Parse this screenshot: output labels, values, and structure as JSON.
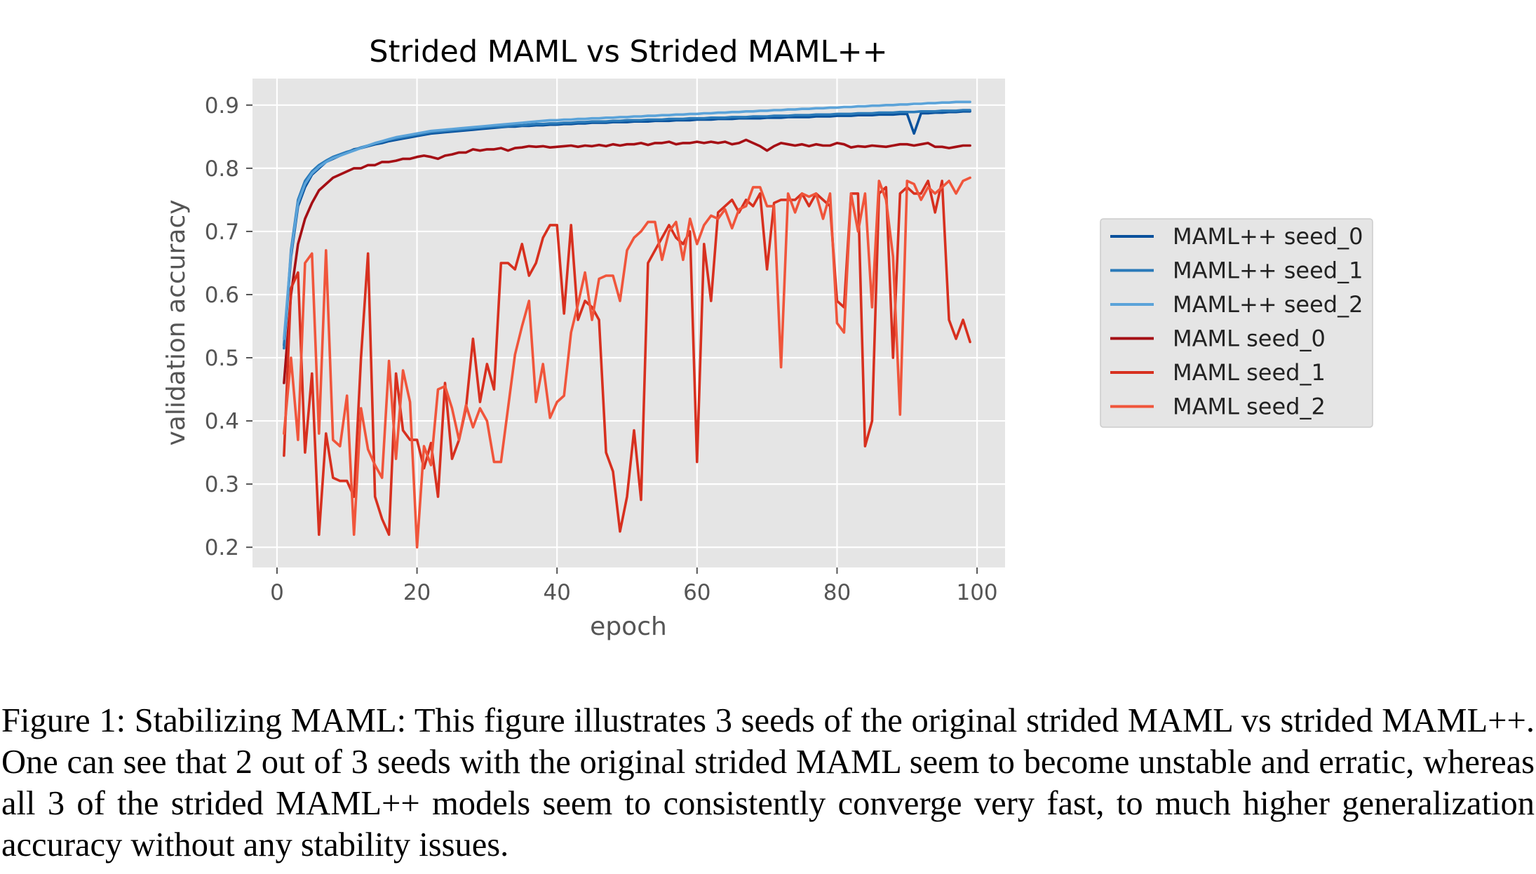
{
  "chart_data": {
    "type": "line",
    "title": "Strided MAML vs Strided MAML++",
    "xlabel": "epoch",
    "ylabel": "validation accuracy",
    "xlim": [
      -3.5,
      104
    ],
    "ylim": [
      0.168,
      0.942
    ],
    "xticks": [
      0,
      20,
      40,
      60,
      80,
      100
    ],
    "yticks": [
      0.2,
      0.3,
      0.4,
      0.5,
      0.6,
      0.7,
      0.8,
      0.9
    ],
    "xtick_labels": [
      "0",
      "20",
      "40",
      "60",
      "80",
      "100"
    ],
    "ytick_labels": [
      "0.2",
      "0.3",
      "0.4",
      "0.5",
      "0.6",
      "0.7",
      "0.8",
      "0.9"
    ],
    "grid": true,
    "background": "#e5e5e5",
    "legend_position": "outside right",
    "x": [
      1,
      2,
      3,
      4,
      5,
      6,
      7,
      8,
      9,
      10,
      11,
      12,
      13,
      14,
      15,
      16,
      17,
      18,
      19,
      20,
      21,
      22,
      23,
      24,
      25,
      26,
      27,
      28,
      29,
      30,
      31,
      32,
      33,
      34,
      35,
      36,
      37,
      38,
      39,
      40,
      41,
      42,
      43,
      44,
      45,
      46,
      47,
      48,
      49,
      50,
      51,
      52,
      53,
      54,
      55,
      56,
      57,
      58,
      59,
      60,
      61,
      62,
      63,
      64,
      65,
      66,
      67,
      68,
      69,
      70,
      71,
      72,
      73,
      74,
      75,
      76,
      77,
      78,
      79,
      80,
      81,
      82,
      83,
      84,
      85,
      86,
      87,
      88,
      89,
      90,
      91,
      92,
      93,
      94,
      95,
      96,
      97,
      98,
      99
    ],
    "series": [
      {
        "name": "MAML++ seed_0",
        "color": "#08519c",
        "values": [
          0.52,
          0.66,
          0.74,
          0.77,
          0.79,
          0.8,
          0.81,
          0.815,
          0.82,
          0.825,
          0.83,
          0.832,
          0.835,
          0.838,
          0.84,
          0.843,
          0.845,
          0.847,
          0.849,
          0.851,
          0.853,
          0.855,
          0.856,
          0.857,
          0.858,
          0.859,
          0.86,
          0.861,
          0.862,
          0.863,
          0.864,
          0.865,
          0.866,
          0.866,
          0.867,
          0.867,
          0.868,
          0.868,
          0.869,
          0.869,
          0.87,
          0.87,
          0.871,
          0.871,
          0.872,
          0.872,
          0.872,
          0.873,
          0.873,
          0.873,
          0.874,
          0.874,
          0.874,
          0.875,
          0.875,
          0.875,
          0.876,
          0.876,
          0.876,
          0.877,
          0.877,
          0.877,
          0.878,
          0.878,
          0.878,
          0.879,
          0.879,
          0.879,
          0.879,
          0.88,
          0.88,
          0.88,
          0.881,
          0.881,
          0.881,
          0.881,
          0.882,
          0.882,
          0.882,
          0.883,
          0.883,
          0.883,
          0.884,
          0.884,
          0.884,
          0.885,
          0.885,
          0.885,
          0.886,
          0.886,
          0.855,
          0.887,
          0.887,
          0.888,
          0.888,
          0.889,
          0.889,
          0.89,
          0.89
        ]
      },
      {
        "name": "MAML++ seed_1",
        "color": "#2a7ab9",
        "values": [
          0.515,
          0.67,
          0.75,
          0.78,
          0.795,
          0.805,
          0.812,
          0.818,
          0.822,
          0.826,
          0.829,
          0.833,
          0.836,
          0.839,
          0.842,
          0.845,
          0.847,
          0.849,
          0.851,
          0.853,
          0.855,
          0.857,
          0.858,
          0.859,
          0.86,
          0.861,
          0.862,
          0.863,
          0.864,
          0.865,
          0.866,
          0.866,
          0.867,
          0.868,
          0.868,
          0.869,
          0.87,
          0.87,
          0.871,
          0.871,
          0.872,
          0.872,
          0.873,
          0.873,
          0.874,
          0.874,
          0.874,
          0.875,
          0.875,
          0.876,
          0.876,
          0.876,
          0.877,
          0.877,
          0.877,
          0.878,
          0.878,
          0.878,
          0.879,
          0.879,
          0.879,
          0.88,
          0.88,
          0.88,
          0.881,
          0.881,
          0.881,
          0.882,
          0.882,
          0.882,
          0.883,
          0.883,
          0.883,
          0.884,
          0.884,
          0.884,
          0.885,
          0.885,
          0.885,
          0.886,
          0.886,
          0.886,
          0.887,
          0.887,
          0.887,
          0.888,
          0.888,
          0.888,
          0.889,
          0.889,
          0.889,
          0.89,
          0.89,
          0.89,
          0.891,
          0.891,
          0.891,
          0.892,
          0.892
        ]
      },
      {
        "name": "MAML++ seed_2",
        "color": "#5ba3d9",
        "values": [
          0.53,
          0.665,
          0.745,
          0.775,
          0.792,
          0.802,
          0.81,
          0.816,
          0.82,
          0.824,
          0.828,
          0.832,
          0.836,
          0.84,
          0.843,
          0.846,
          0.849,
          0.851,
          0.853,
          0.855,
          0.857,
          0.859,
          0.86,
          0.861,
          0.862,
          0.863,
          0.864,
          0.865,
          0.866,
          0.867,
          0.868,
          0.869,
          0.87,
          0.871,
          0.872,
          0.873,
          0.874,
          0.875,
          0.876,
          0.876,
          0.877,
          0.877,
          0.878,
          0.878,
          0.879,
          0.879,
          0.88,
          0.88,
          0.881,
          0.881,
          0.882,
          0.882,
          0.883,
          0.883,
          0.884,
          0.884,
          0.885,
          0.885,
          0.886,
          0.886,
          0.887,
          0.887,
          0.888,
          0.888,
          0.889,
          0.889,
          0.89,
          0.89,
          0.891,
          0.891,
          0.892,
          0.892,
          0.893,
          0.893,
          0.894,
          0.894,
          0.895,
          0.895,
          0.896,
          0.896,
          0.897,
          0.897,
          0.898,
          0.898,
          0.899,
          0.899,
          0.9,
          0.9,
          0.901,
          0.901,
          0.902,
          0.902,
          0.903,
          0.903,
          0.904,
          0.904,
          0.905,
          0.905,
          0.905
        ]
      },
      {
        "name": "MAML seed_0",
        "color": "#a50f15",
        "values": [
          0.46,
          0.6,
          0.68,
          0.72,
          0.745,
          0.765,
          0.775,
          0.785,
          0.79,
          0.795,
          0.8,
          0.8,
          0.805,
          0.805,
          0.81,
          0.81,
          0.812,
          0.815,
          0.815,
          0.818,
          0.82,
          0.818,
          0.815,
          0.82,
          0.822,
          0.825,
          0.825,
          0.83,
          0.828,
          0.83,
          0.83,
          0.832,
          0.828,
          0.832,
          0.833,
          0.835,
          0.834,
          0.835,
          0.833,
          0.834,
          0.835,
          0.836,
          0.834,
          0.836,
          0.835,
          0.837,
          0.835,
          0.838,
          0.836,
          0.838,
          0.838,
          0.84,
          0.837,
          0.84,
          0.84,
          0.842,
          0.838,
          0.84,
          0.84,
          0.842,
          0.84,
          0.842,
          0.84,
          0.842,
          0.838,
          0.84,
          0.845,
          0.84,
          0.835,
          0.828,
          0.835,
          0.84,
          0.838,
          0.836,
          0.838,
          0.835,
          0.838,
          0.836,
          0.836,
          0.84,
          0.838,
          0.833,
          0.835,
          0.834,
          0.836,
          0.835,
          0.834,
          0.836,
          0.838,
          0.838,
          0.836,
          0.838,
          0.84,
          0.834,
          0.834,
          0.832,
          0.834,
          0.836,
          0.836
        ]
      },
      {
        "name": "MAML seed_1",
        "color": "#d7301f",
        "values": [
          0.345,
          0.61,
          0.635,
          0.35,
          0.475,
          0.22,
          0.38,
          0.31,
          0.305,
          0.305,
          0.28,
          0.5,
          0.665,
          0.28,
          0.245,
          0.22,
          0.475,
          0.385,
          0.37,
          0.37,
          0.325,
          0.365,
          0.28,
          0.46,
          0.34,
          0.37,
          0.42,
          0.53,
          0.43,
          0.49,
          0.45,
          0.65,
          0.65,
          0.64,
          0.68,
          0.63,
          0.65,
          0.69,
          0.71,
          0.71,
          0.57,
          0.71,
          0.56,
          0.59,
          0.58,
          0.56,
          0.35,
          0.32,
          0.225,
          0.28,
          0.385,
          0.275,
          0.65,
          0.67,
          0.69,
          0.71,
          0.69,
          0.68,
          0.7,
          0.335,
          0.68,
          0.59,
          0.73,
          0.74,
          0.75,
          0.73,
          0.75,
          0.74,
          0.76,
          0.64,
          0.745,
          0.75,
          0.75,
          0.75,
          0.76,
          0.74,
          0.76,
          0.75,
          0.74,
          0.59,
          0.58,
          0.76,
          0.76,
          0.36,
          0.4,
          0.76,
          0.77,
          0.5,
          0.76,
          0.77,
          0.76,
          0.76,
          0.78,
          0.73,
          0.78,
          0.56,
          0.53,
          0.56,
          0.525
        ]
      },
      {
        "name": "MAML seed_2",
        "color": "#f0553b",
        "values": [
          0.38,
          0.5,
          0.37,
          0.65,
          0.665,
          0.38,
          0.67,
          0.37,
          0.36,
          0.44,
          0.22,
          0.42,
          0.355,
          0.33,
          0.31,
          0.495,
          0.34,
          0.48,
          0.43,
          0.2,
          0.36,
          0.33,
          0.45,
          0.455,
          0.42,
          0.37,
          0.425,
          0.39,
          0.42,
          0.4,
          0.335,
          0.335,
          0.42,
          0.505,
          0.55,
          0.59,
          0.43,
          0.49,
          0.405,
          0.43,
          0.44,
          0.54,
          0.585,
          0.635,
          0.56,
          0.625,
          0.63,
          0.63,
          0.59,
          0.67,
          0.69,
          0.7,
          0.715,
          0.715,
          0.655,
          0.7,
          0.715,
          0.655,
          0.72,
          0.68,
          0.71,
          0.725,
          0.72,
          0.735,
          0.705,
          0.735,
          0.74,
          0.77,
          0.77,
          0.74,
          0.74,
          0.485,
          0.76,
          0.73,
          0.76,
          0.755,
          0.76,
          0.72,
          0.76,
          0.555,
          0.54,
          0.76,
          0.7,
          0.76,
          0.58,
          0.78,
          0.75,
          0.66,
          0.41,
          0.78,
          0.775,
          0.75,
          0.77,
          0.76,
          0.77,
          0.78,
          0.76,
          0.78,
          0.785
        ]
      }
    ]
  },
  "caption": "Figure 1: Stabilizing MAML: This figure illustrates 3 seeds of the original strided MAML vs strided MAML++. One can see that 2 out of 3 seeds with the original strided MAML seem to become unstable and erratic, whereas all 3 of the strided MAML++ models seem to consistently converge very fast, to much higher generalization accuracy without any stability issues."
}
